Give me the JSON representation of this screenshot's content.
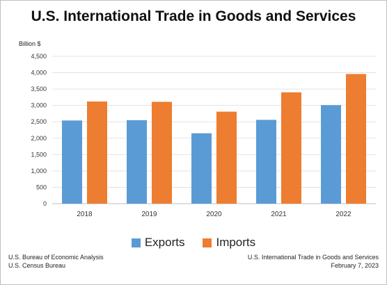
{
  "chart_data": {
    "type": "bar",
    "title": "U.S. International Trade in Goods and Services",
    "ylabel": "Billion $",
    "categories": [
      "2018",
      "2019",
      "2020",
      "2021",
      "2022"
    ],
    "series": [
      {
        "name": "Exports",
        "values": [
          2540,
          2550,
          2150,
          2560,
          3010
        ],
        "color": "#5b9bd5"
      },
      {
        "name": "Imports",
        "values": [
          3120,
          3110,
          2810,
          3400,
          3960
        ],
        "color": "#ed7d31"
      }
    ],
    "yticks": [
      "0",
      "500",
      "1,000",
      "1,500",
      "2,000",
      "2,500",
      "3,000",
      "3,500",
      "4,000",
      "4,500"
    ],
    "ylim": [
      0,
      4500
    ],
    "grid": true,
    "legend": "bottom"
  },
  "footer": {
    "left_line1": "U.S. Bureau of Economic Analysis",
    "left_line2": "U.S. Census Bureau",
    "right_line1": "U.S. International Trade in Goods and Services",
    "right_line2": "February 7, 2023"
  }
}
